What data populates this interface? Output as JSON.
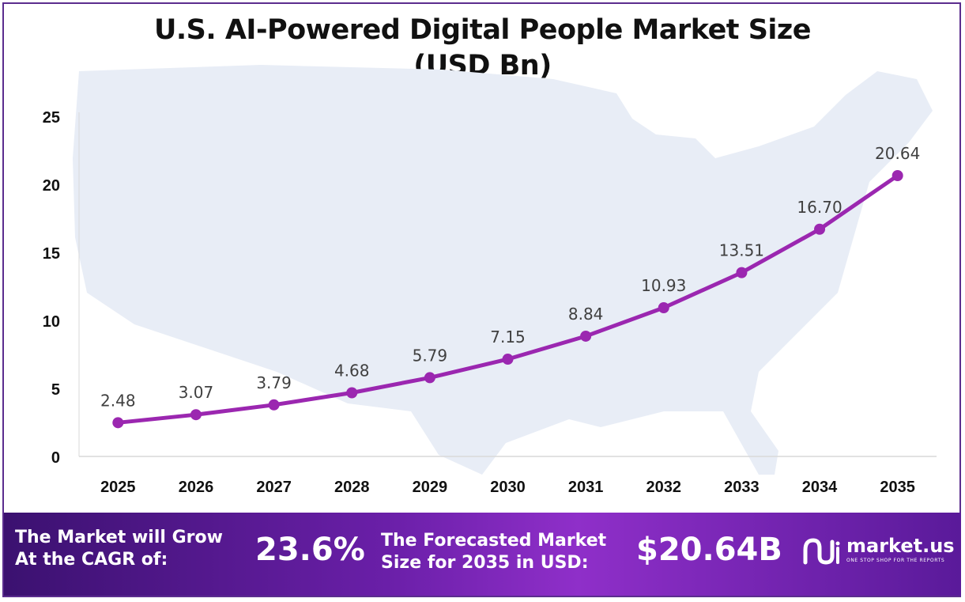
{
  "chart_data": {
    "type": "line",
    "title": "U.S. AI-Powered Digital People Market Size",
    "subtitle": "(USD Bn)",
    "x": [
      "2025",
      "2026",
      "2027",
      "2028",
      "2029",
      "2030",
      "2031",
      "2032",
      "2033",
      "2034",
      "2035"
    ],
    "series": [
      {
        "values": [
          2.48,
          3.07,
          3.79,
          4.68,
          5.79,
          7.15,
          8.84,
          10.93,
          13.51,
          16.7,
          20.64
        ]
      }
    ],
    "data_labels": [
      "2.48",
      "3.07",
      "3.79",
      "4.68",
      "5.79",
      "7.15",
      "8.84",
      "10.93",
      "13.51",
      "16.70",
      "20.64"
    ],
    "ylim": [
      0,
      25
    ],
    "yticks": [
      "0",
      "5",
      "10",
      "15",
      "20",
      "25"
    ],
    "xlabel": "",
    "ylabel": "",
    "grid": false,
    "line_color": "#9b27b0",
    "background_shape": "us-map"
  },
  "banner": {
    "cagr_label_line1": "The Market will Grow",
    "cagr_label_line2": "At the CAGR of:",
    "cagr_value": "23.6%",
    "forecast_label_line1": "The Forecasted Market",
    "forecast_label_line2": "Size for 2035 in USD:",
    "forecast_value": "$20.64B",
    "logo_text": "market.us",
    "logo_tagline": "ONE STOP SHOP FOR THE REPORTS"
  }
}
